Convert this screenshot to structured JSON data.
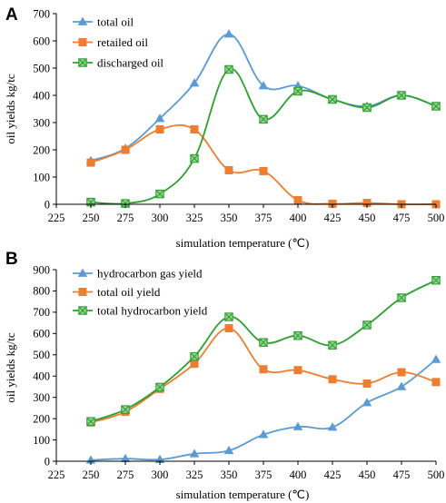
{
  "chart_data": [
    {
      "panel": "A",
      "type": "line",
      "xlabel": "simulation temperature (℃)",
      "ylabel": "oil yields kg/tc",
      "xlim": [
        225,
        500
      ],
      "ylim": [
        0,
        700
      ],
      "xticks": [
        225,
        250,
        275,
        300,
        325,
        350,
        375,
        400,
        425,
        450,
        475,
        500
      ],
      "yticks": [
        0,
        100,
        200,
        300,
        400,
        500,
        600,
        700
      ],
      "legend": "top-left",
      "grid": false,
      "series": [
        {
          "name": "total oil",
          "color": "#5B9BD5",
          "marker": "triangle",
          "x": [
            250,
            275,
            300,
            325,
            350,
            375,
            400,
            425,
            450,
            475,
            500
          ],
          "y": [
            160,
            205,
            315,
            445,
            625,
            435,
            435,
            385,
            360,
            400,
            360
          ]
        },
        {
          "name": "retailed oil",
          "color": "#ED7D31",
          "marker": "square",
          "x": [
            250,
            275,
            300,
            325,
            350,
            375,
            400,
            425,
            450,
            475,
            500
          ],
          "y": [
            153,
            200,
            275,
            275,
            125,
            122,
            15,
            2,
            5,
            0,
            0
          ]
        },
        {
          "name": "discharged oil",
          "color": "#2CA02C",
          "marker": "square-x",
          "x": [
            250,
            275,
            300,
            325,
            350,
            375,
            400,
            425,
            450,
            475,
            500
          ],
          "y": [
            8,
            3,
            38,
            168,
            495,
            312,
            415,
            385,
            355,
            400,
            360
          ]
        }
      ]
    },
    {
      "panel": "B",
      "type": "line",
      "xlabel": "simulation temperature (℃)",
      "ylabel": "oil yields kg/tc",
      "xlim": [
        225,
        500
      ],
      "ylim": [
        0,
        900
      ],
      "xticks": [
        225,
        250,
        275,
        300,
        325,
        350,
        375,
        400,
        425,
        450,
        475,
        500
      ],
      "yticks": [
        0,
        100,
        200,
        300,
        400,
        500,
        600,
        700,
        800,
        900
      ],
      "legend": "top-left",
      "grid": false,
      "series": [
        {
          "name": "hydrocarbon gas yield",
          "color": "#5B9BD5",
          "marker": "triangle",
          "x": [
            250,
            275,
            300,
            325,
            350,
            375,
            400,
            425,
            450,
            475,
            500
          ],
          "y": [
            5,
            12,
            8,
            35,
            50,
            125,
            162,
            160,
            275,
            350,
            478
          ]
        },
        {
          "name": "total oil yield",
          "color": "#ED7D31",
          "marker": "square",
          "x": [
            250,
            275,
            300,
            325,
            350,
            375,
            400,
            425,
            450,
            475,
            500
          ],
          "y": [
            182,
            232,
            340,
            458,
            625,
            432,
            428,
            385,
            365,
            418,
            372
          ]
        },
        {
          "name": "total hydrocarbon yield",
          "color": "#2CA02C",
          "marker": "square-x",
          "x": [
            250,
            275,
            300,
            325,
            350,
            375,
            400,
            425,
            450,
            475,
            500
          ],
          "y": [
            187,
            243,
            348,
            492,
            678,
            558,
            590,
            545,
            640,
            768,
            850
          ]
        }
      ]
    }
  ]
}
